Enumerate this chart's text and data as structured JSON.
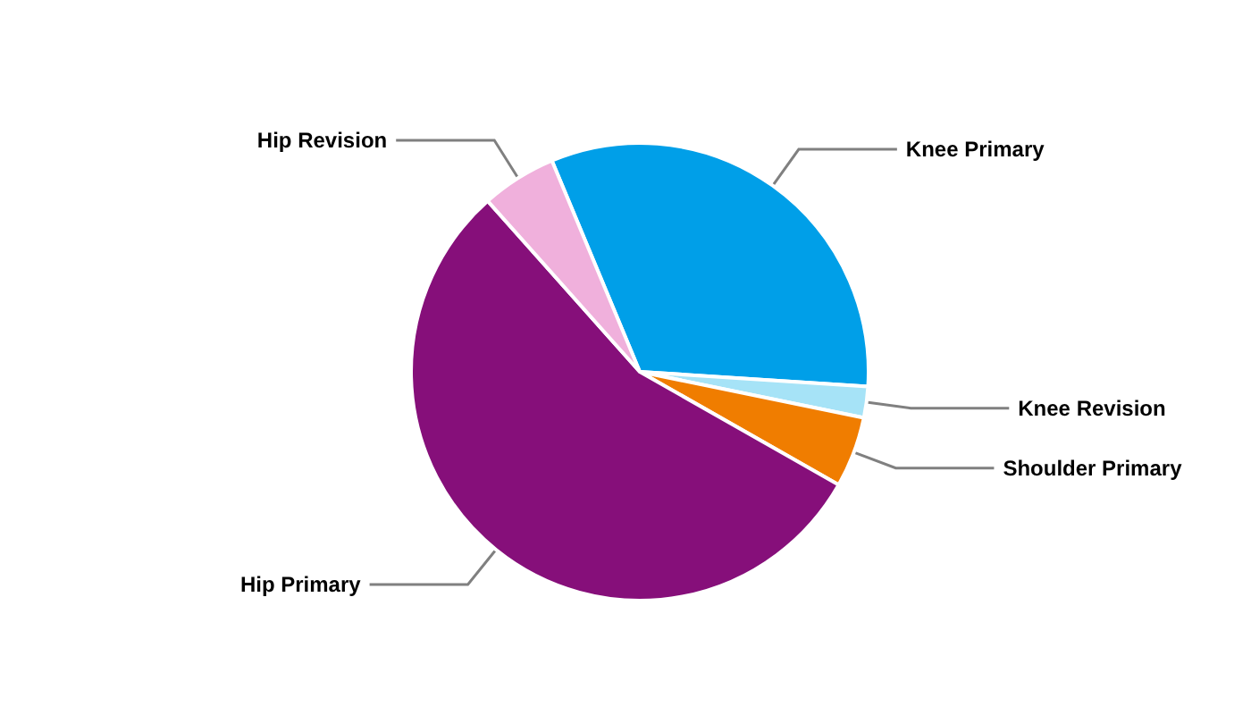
{
  "chart_data": {
    "type": "pie",
    "categories": [
      "Knee Primary",
      "Knee Revision",
      "Shoulder Primary",
      "Hip Primary",
      "Hip Revision"
    ],
    "values": [
      32.3,
      2.2,
      5.0,
      55.2,
      5.3
    ],
    "colors": [
      "#009fe8",
      "#a6e3f7",
      "#f07d00",
      "#860f7a",
      "#f0b0dc"
    ],
    "legend": false
  }
}
